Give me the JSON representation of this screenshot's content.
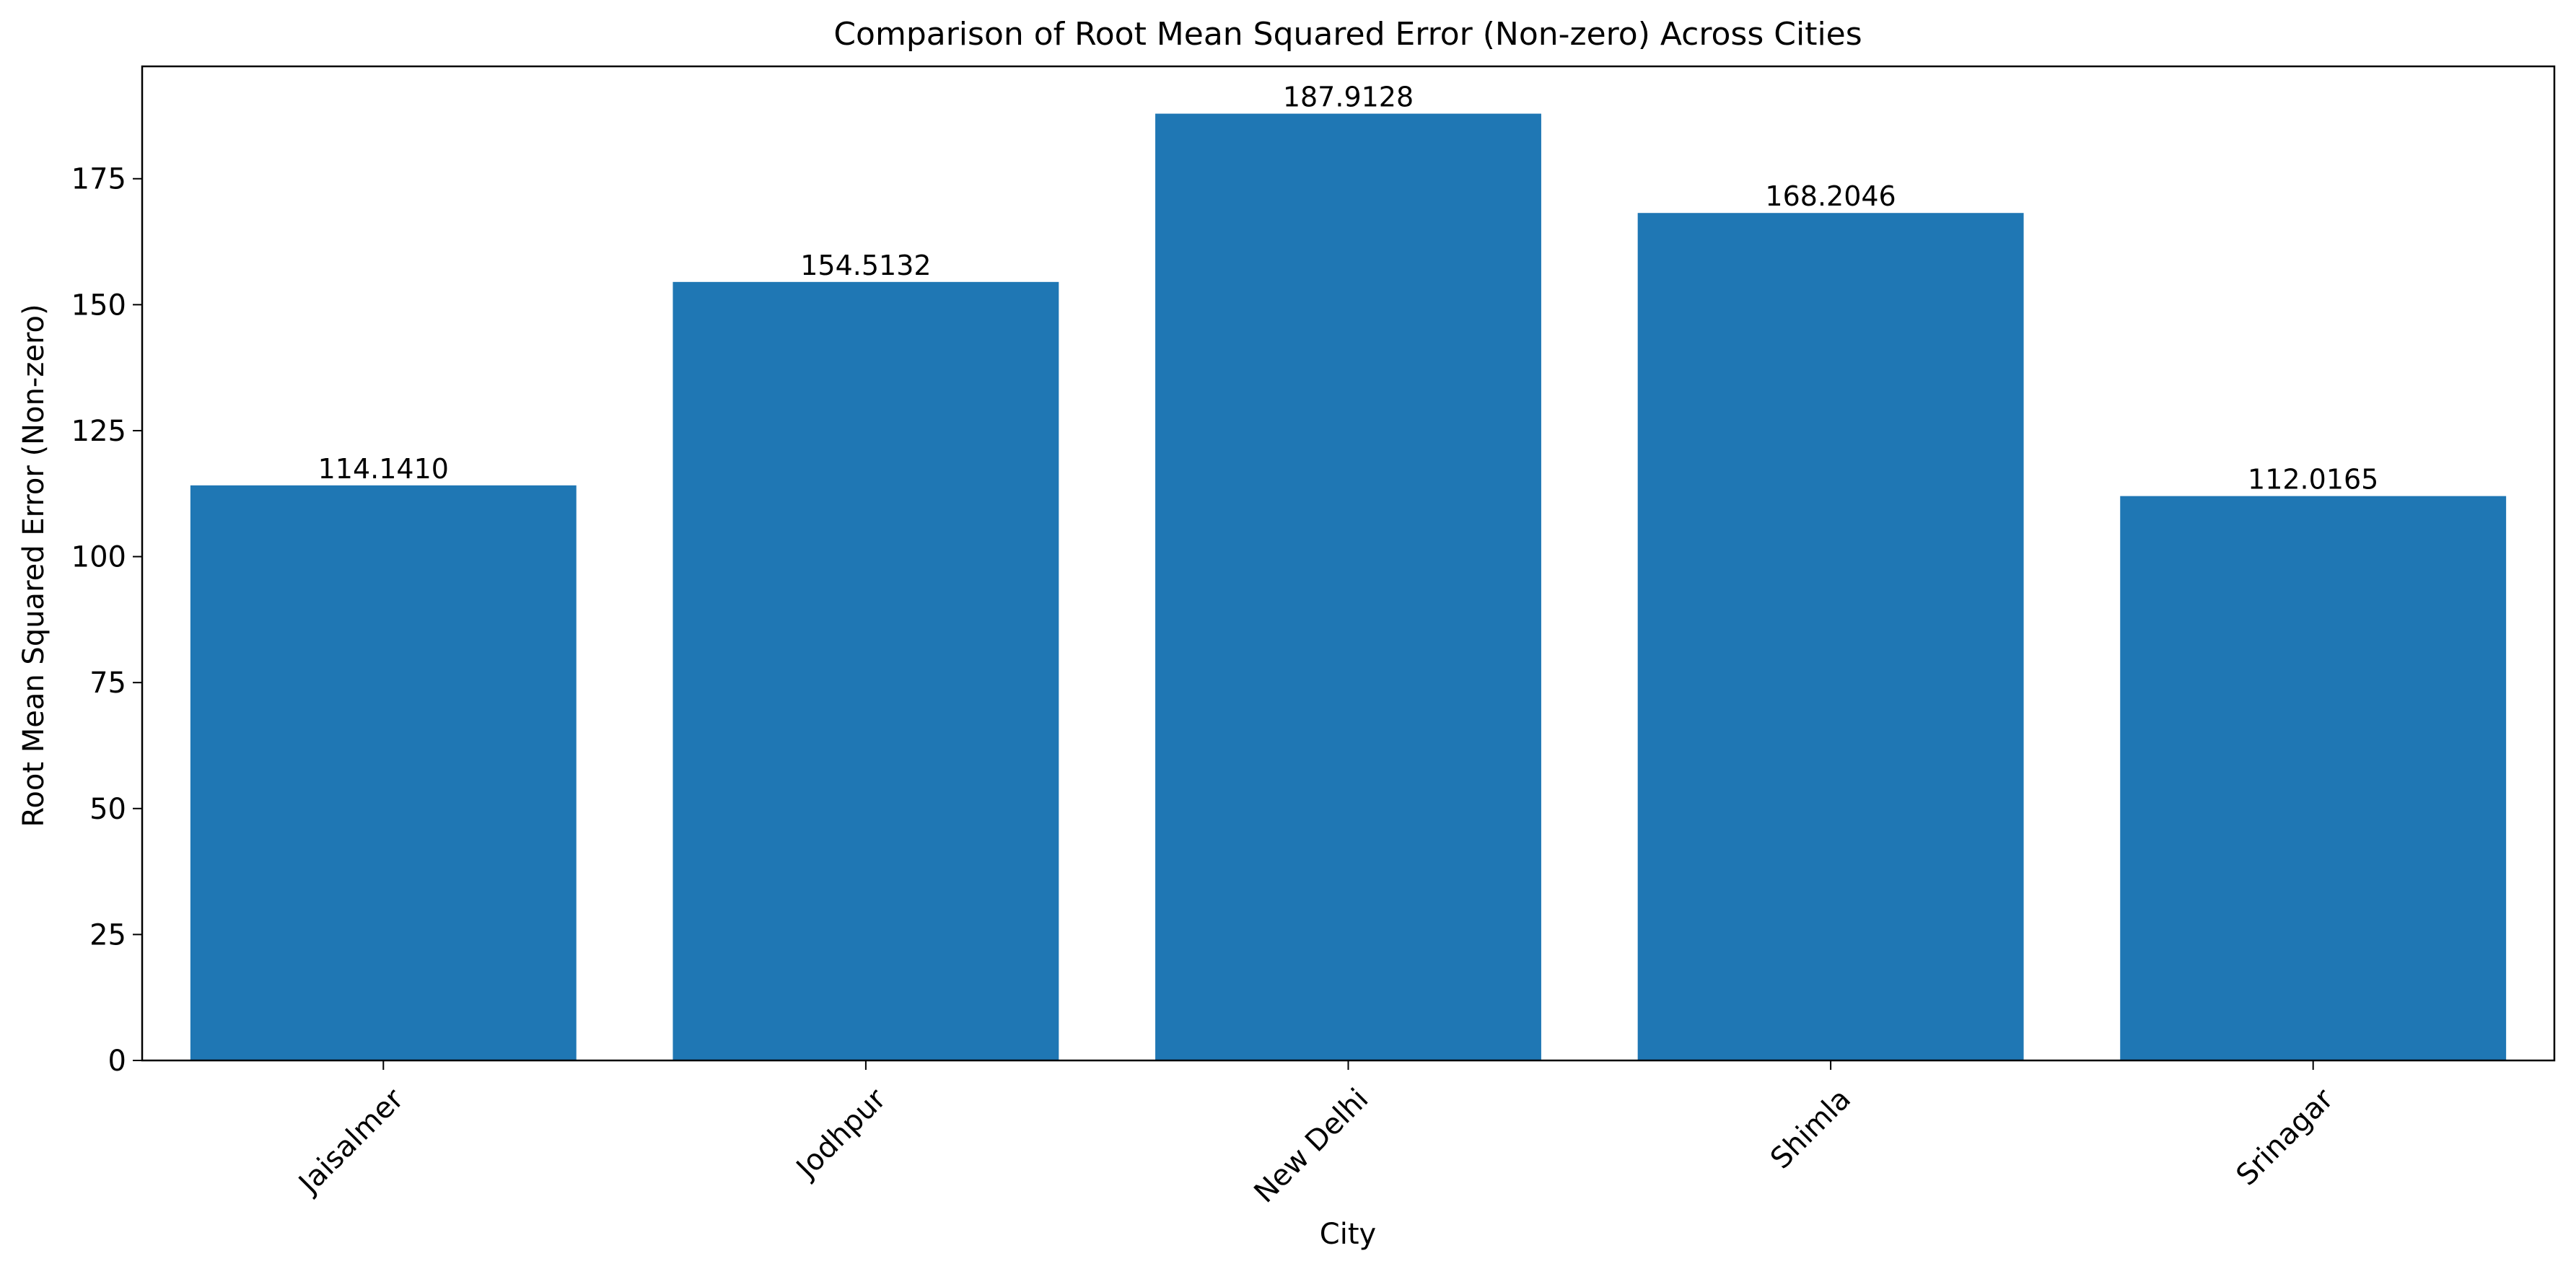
{
  "chart_data": {
    "type": "bar",
    "title": "Comparison of Root Mean Squared Error (Non-zero) Across Cities",
    "xlabel": "City",
    "ylabel": "Root Mean Squared Error (Non-zero)",
    "categories": [
      "Jaisalmer",
      "Jodhpur",
      "New Delhi",
      "Shimla",
      "Srinagar"
    ],
    "values": [
      114.141,
      154.5132,
      187.9128,
      168.2046,
      112.0165
    ],
    "value_labels": [
      "114.1410",
      "154.5132",
      "187.9128",
      "168.2046",
      "112.0165"
    ],
    "ylim": [
      0,
      197.3
    ],
    "yticks": [
      0,
      25,
      50,
      75,
      100,
      125,
      150,
      175
    ],
    "bar_color": "#1f77b4",
    "xtick_rotation_deg": 45,
    "grid": false,
    "legend": "none"
  }
}
